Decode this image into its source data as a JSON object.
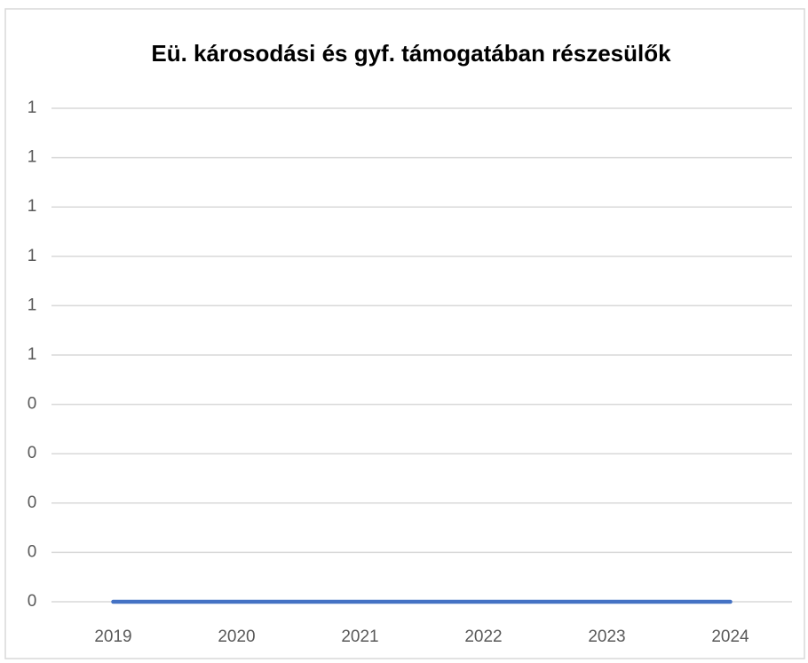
{
  "chart_data": {
    "type": "line",
    "title": "Eü. károsodási és gyf. támogatában részesülők",
    "categories": [
      "2019",
      "2020",
      "2021",
      "2022",
      "2023",
      "2024"
    ],
    "values": [
      0,
      0,
      0,
      0,
      0,
      0
    ],
    "color": "#4472c4",
    "ylim": [
      0,
      1
    ],
    "yticks": [
      0,
      {
        "value": 0.1,
        "label": "0"
      },
      {
        "value": 0.2,
        "label": "0"
      },
      {
        "value": 0.3,
        "label": "0"
      },
      {
        "value": 0.4,
        "label": "0"
      },
      {
        "value": 0.5,
        "label": "1"
      },
      {
        "value": 0.6,
        "label": "1"
      },
      {
        "value": 0.7,
        "label": "1"
      },
      {
        "value": 0.8,
        "label": "1"
      },
      {
        "value": 0.9,
        "label": "1"
      },
      1
    ],
    "grid": true
  }
}
